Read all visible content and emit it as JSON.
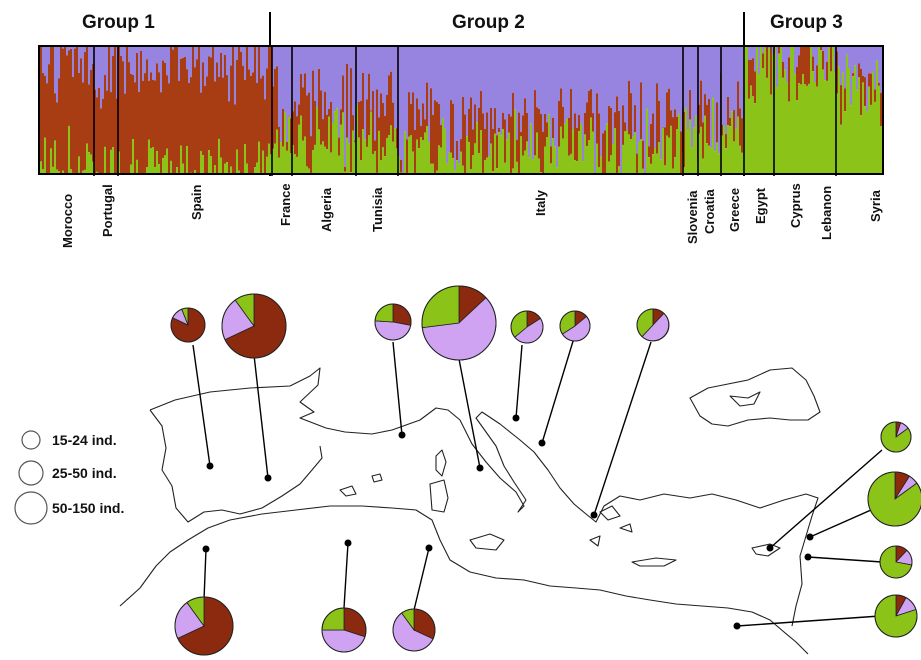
{
  "groups": [
    "Group 1",
    "Group 2",
    "Group 3"
  ],
  "countries": [
    "Morocco",
    "Portugal",
    "Spain",
    "France",
    "Algeria",
    "Tunisia",
    "Italy",
    "Slovenia",
    "Croatia",
    "Greece",
    "Egypt",
    "Cyprus",
    "Lebanon",
    "Syria"
  ],
  "legend": [
    "15-24 ind.",
    "25-50 ind.",
    "50-150 ind."
  ],
  "colors": {
    "cluster_red": "#a83c12",
    "cluster_purple": "#9684e0",
    "cluster_green": "#8cc319",
    "pie_purple": "#cfa3f2",
    "pie_red": "#8b2a0f"
  },
  "chart_data": {
    "type": "bar",
    "description_series": [
      "red",
      "purple",
      "green"
    ],
    "groups": [
      "Group 1",
      "Group 2",
      "Group 3"
    ],
    "categories": [
      "Morocco",
      "Portugal",
      "Spain",
      "France",
      "Algeria",
      "Tunisia",
      "Italy",
      "Slovenia",
      "Croatia",
      "Greece",
      "Egypt",
      "Cyprus",
      "Lebanon",
      "Syria"
    ],
    "approx_ancestry": [
      [
        0.8,
        0.15,
        0.05
      ],
      [
        0.72,
        0.22,
        0.06
      ],
      [
        0.78,
        0.17,
        0.05
      ],
      [
        0.35,
        0.4,
        0.25
      ],
      [
        0.35,
        0.4,
        0.25
      ],
      [
        0.3,
        0.45,
        0.25
      ],
      [
        0.22,
        0.58,
        0.2
      ],
      [
        0.25,
        0.5,
        0.25
      ],
      [
        0.22,
        0.5,
        0.28
      ],
      [
        0.1,
        0.55,
        0.35
      ],
      [
        0.05,
        0.1,
        0.85
      ],
      [
        0.03,
        0.07,
        0.9
      ],
      [
        0.1,
        0.25,
        0.65
      ],
      [
        0.1,
        0.12,
        0.78
      ]
    ]
  }
}
